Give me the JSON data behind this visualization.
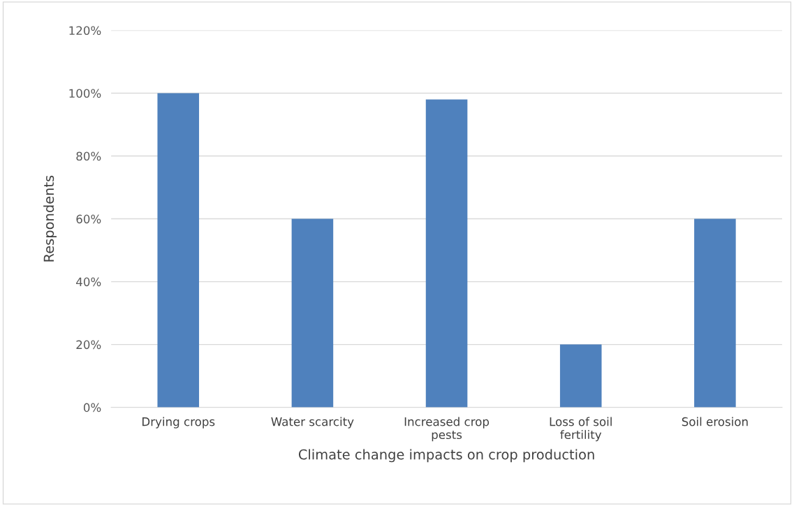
{
  "chart_data": {
    "type": "bar",
    "xlabel": "Climate change impacts on crop production",
    "ylabel": "Respondents",
    "categories": [
      "Drying crops",
      "Water scarcity",
      "Increased crop pests",
      "Loss of soil fertility",
      "Soil erosion"
    ],
    "values": [
      100,
      60,
      98,
      20,
      60
    ],
    "color": "#4f81bd",
    "ylim": [
      0,
      120
    ],
    "yticks": [
      {
        "value": 0,
        "label": "0%"
      },
      {
        "value": 20,
        "label": "20%"
      },
      {
        "value": 40,
        "label": "40%"
      },
      {
        "value": 60,
        "label": "60%"
      },
      {
        "value": 80,
        "label": "80%"
      },
      {
        "value": 100,
        "label": "100%"
      },
      {
        "value": 120,
        "label": "120%"
      }
    ],
    "grid": "y",
    "legend": false
  }
}
